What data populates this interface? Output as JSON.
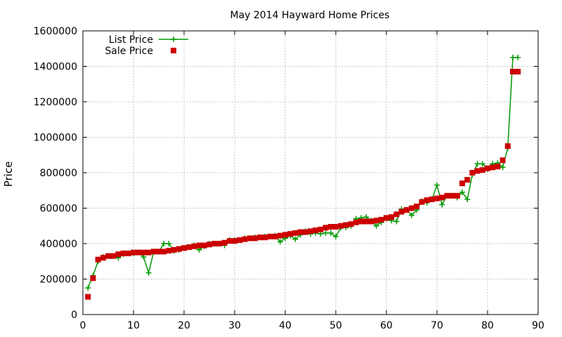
{
  "chart_data": {
    "type": "line",
    "title": "May 2014 Hayward Home Prices",
    "xlabel": "",
    "ylabel": "Price",
    "xlim": [
      0,
      90
    ],
    "ylim": [
      0,
      1600000
    ],
    "xticks": [
      0,
      10,
      20,
      30,
      40,
      50,
      60,
      70,
      80,
      90
    ],
    "yticks": [
      0,
      200000,
      400000,
      600000,
      800000,
      1000000,
      1200000,
      1400000,
      1600000
    ],
    "grid": true,
    "legend_position": "top-left",
    "series": [
      {
        "name": "List Price",
        "style": "linespoints",
        "color": "#009900",
        "values": [
          150000,
          220000,
          300000,
          325000,
          330000,
          330000,
          320000,
          340000,
          345000,
          345000,
          350000,
          325000,
          235000,
          355000,
          355000,
          400000,
          400000,
          360000,
          365000,
          375000,
          380000,
          390000,
          365000,
          385000,
          400000,
          400000,
          400000,
          390000,
          420000,
          420000,
          420000,
          430000,
          430000,
          435000,
          435000,
          440000,
          440000,
          445000,
          410000,
          430000,
          445000,
          425000,
          450000,
          470000,
          455000,
          460000,
          455000,
          460000,
          460000,
          440000,
          490000,
          490000,
          500000,
          540000,
          545000,
          550000,
          530000,
          500000,
          520000,
          540000,
          530000,
          525000,
          595000,
          590000,
          560000,
          590000,
          640000,
          630000,
          650000,
          730000,
          620000,
          670000,
          670000,
          660000,
          690000,
          650000,
          790000,
          850000,
          850000,
          820000,
          850000,
          855000,
          830000,
          940000,
          1450000,
          1450000
        ]
      },
      {
        "name": "Sale Price",
        "style": "points",
        "color": "#cc0000",
        "values": [
          100000,
          205000,
          310000,
          320000,
          330000,
          330000,
          340000,
          345000,
          345000,
          350000,
          350000,
          350000,
          350000,
          355000,
          355000,
          355000,
          360000,
          365000,
          370000,
          375000,
          380000,
          385000,
          390000,
          390000,
          395000,
          400000,
          400000,
          405000,
          415000,
          415000,
          420000,
          425000,
          430000,
          430000,
          435000,
          435000,
          440000,
          440000,
          445000,
          450000,
          455000,
          460000,
          465000,
          465000,
          470000,
          475000,
          480000,
          490000,
          495000,
          495000,
          500000,
          505000,
          510000,
          520000,
          525000,
          525000,
          525000,
          530000,
          535000,
          545000,
          550000,
          565000,
          580000,
          590000,
          600000,
          610000,
          635000,
          645000,
          650000,
          655000,
          660000,
          670000,
          670000,
          670000,
          740000,
          760000,
          800000,
          810000,
          815000,
          825000,
          830000,
          835000,
          870000,
          950000,
          1370000,
          1370000
        ]
      }
    ]
  }
}
